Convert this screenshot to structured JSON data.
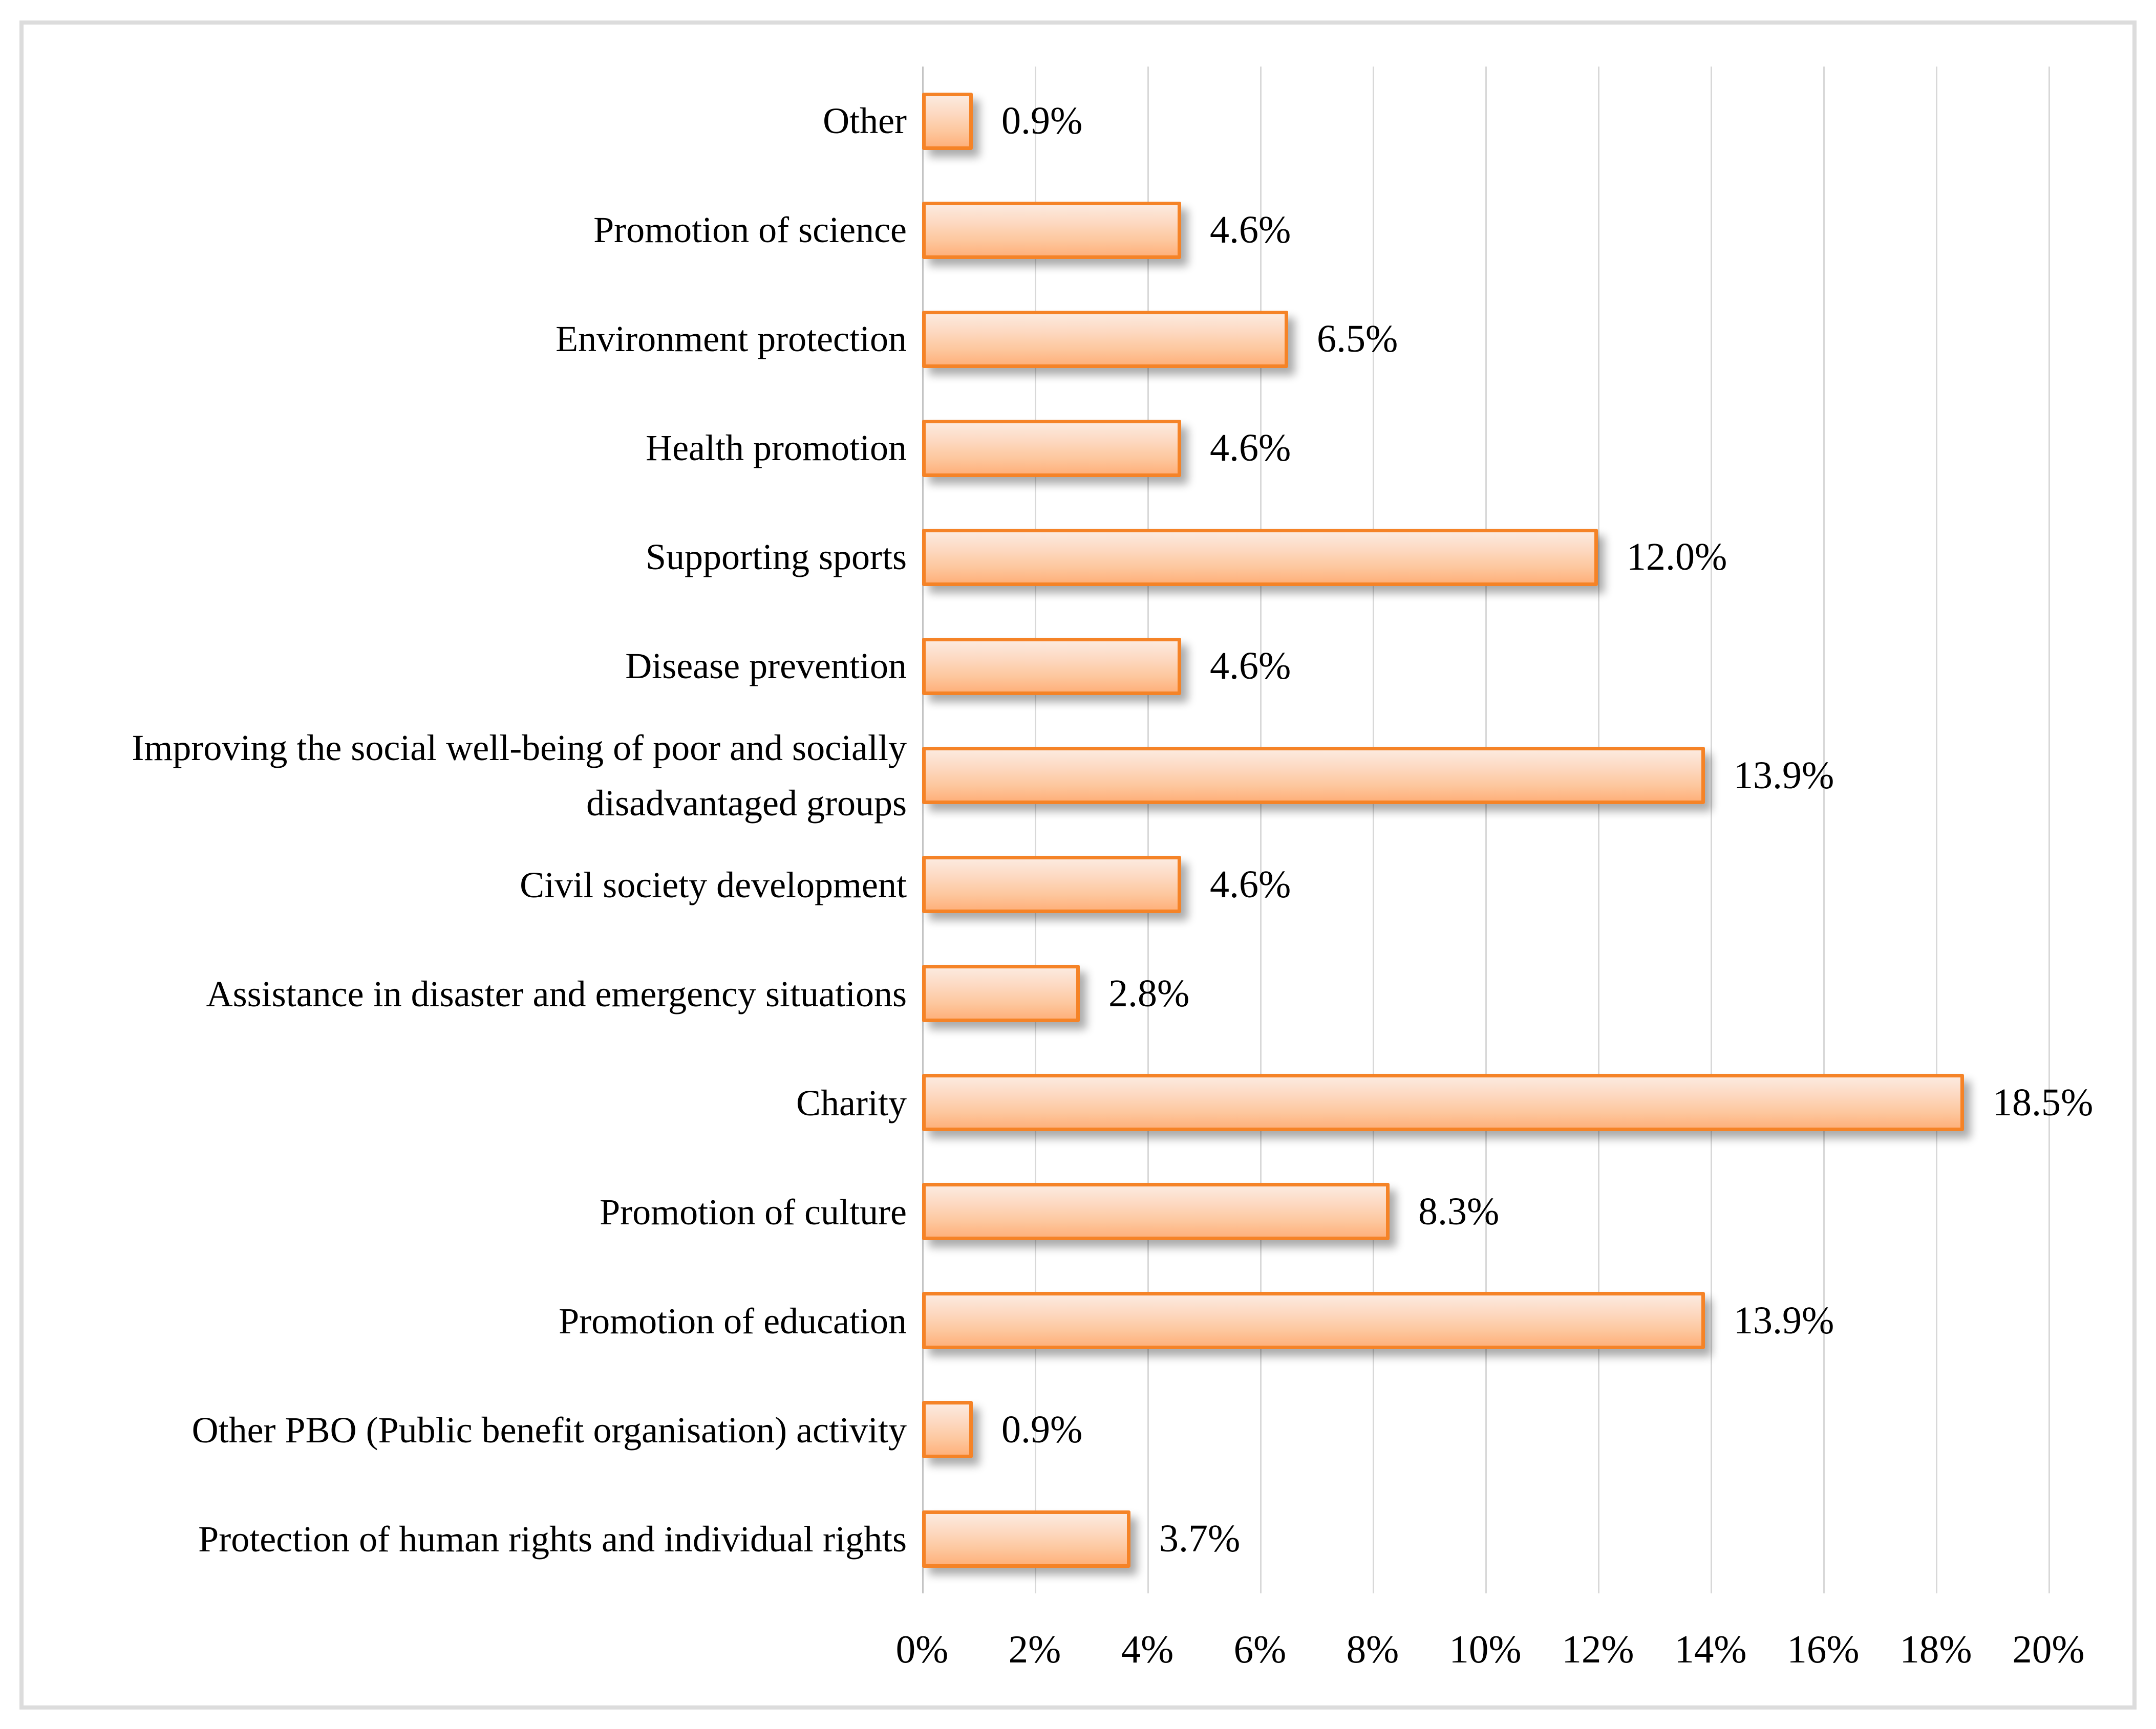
{
  "chart_data": {
    "type": "bar",
    "orientation": "horizontal",
    "title": "",
    "xlabel": "",
    "ylabel": "",
    "xlim": [
      0,
      20
    ],
    "grid": "vertical-every-2pct",
    "legend": "none",
    "categories": [
      "Other",
      "Promotion of science",
      "Environment protection",
      "Health promotion",
      "Supporting sports",
      "Disease prevention",
      "Improving the social well-being of poor and socially disadvantaged groups",
      "Civil society development",
      "Assistance in disaster and emergency situations",
      "Charity",
      "Promotion of culture",
      "Promotion of education",
      "Other PBO (Public benefit organisation) activity",
      "Protection of human rights and individual rights"
    ],
    "values": [
      0.9,
      4.6,
      6.5,
      4.6,
      12.0,
      4.6,
      13.9,
      4.6,
      2.8,
      18.5,
      8.3,
      13.9,
      0.9,
      3.7
    ],
    "value_labels": [
      "0.9%",
      "4.6%",
      "6.5%",
      "4.6%",
      "12.0%",
      "4.6%",
      "13.9%",
      "4.6%",
      "2.8%",
      "18.5%",
      "8.3%",
      "13.9%",
      "0.9%",
      "3.7%"
    ],
    "x_tick_labels": [
      "0%",
      "2%",
      "4%",
      "6%",
      "8%",
      "10%",
      "12%",
      "14%",
      "16%",
      "18%",
      "20%"
    ],
    "x_tick_values": [
      0,
      2,
      4,
      6,
      8,
      10,
      12,
      14,
      16,
      18,
      20
    ],
    "colors": {
      "bar_border": "#F58327",
      "bar_fill_top": "#FCEADF",
      "bar_fill_bottom": "#FEB17C",
      "gridline": "#D8D8D8",
      "axis_line": "#C4C4C4",
      "frame_border": "#DCDCDC",
      "text": "#000000",
      "background": "#FFFFFF"
    }
  }
}
